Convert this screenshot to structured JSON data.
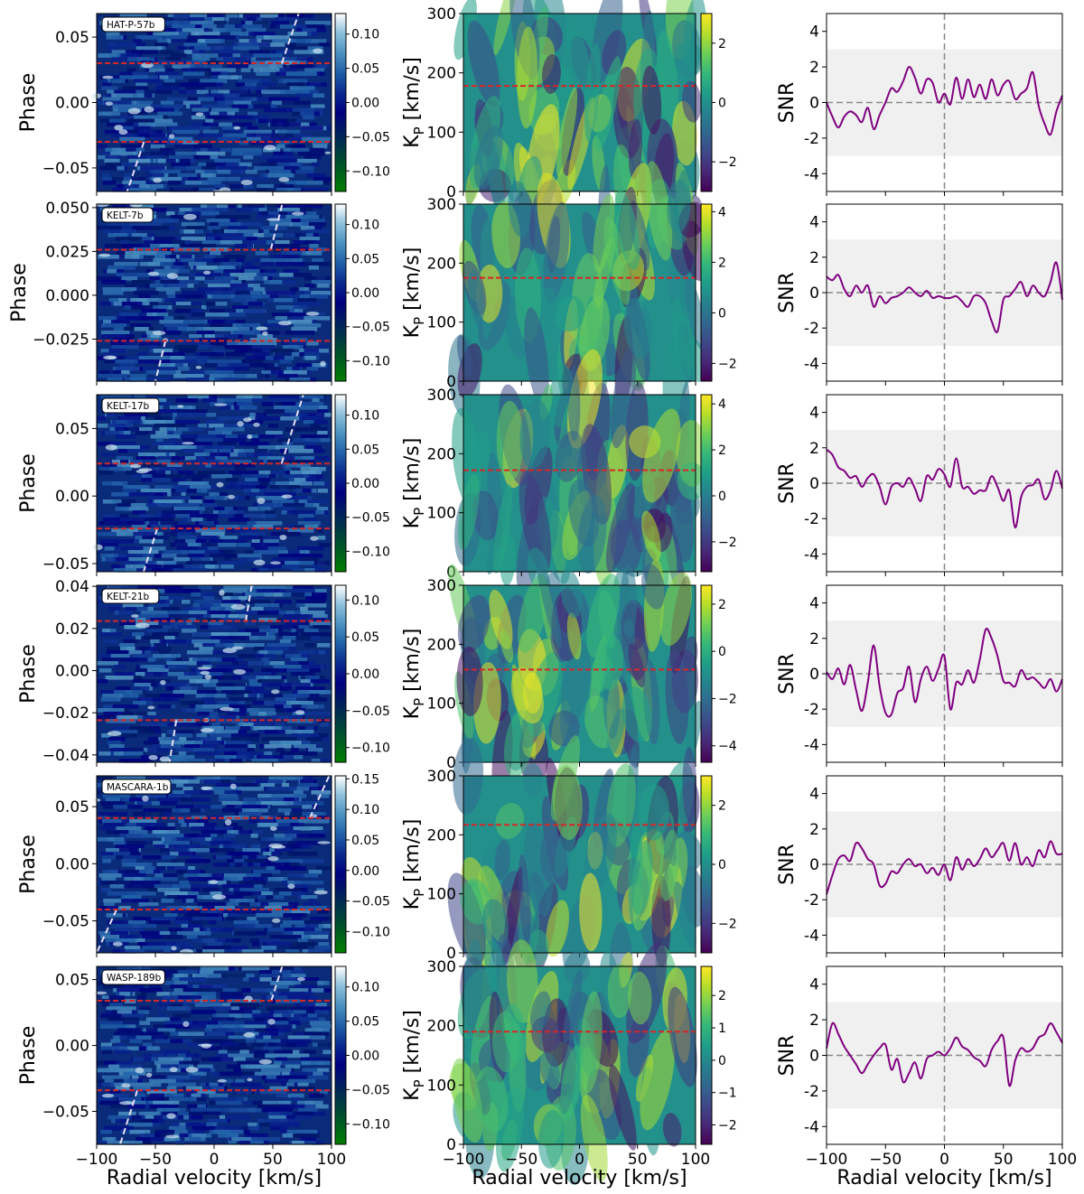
{
  "chart_data": {
    "type": "heatmap",
    "layout": "6 rows x 3 columns",
    "columns": [
      {
        "kind": "phase-velocity cross-correlation map",
        "xlabel": "Radial velocity [km/s]",
        "ylabel": "Phase",
        "xlim": [
          -100,
          100
        ],
        "x_ticks": [
          -100,
          -50,
          0,
          50,
          100
        ],
        "colormap": "ocean"
      },
      {
        "kind": "Kp-vsys map",
        "xlabel": "Radial velocity [km/s]",
        "ylabel": "K_P [km/s]",
        "xlim": [
          -100,
          100
        ],
        "ylim": [
          0,
          300
        ],
        "x_ticks": [
          -100,
          -50,
          0,
          50,
          100
        ],
        "y_ticks": [
          0,
          100,
          200,
          300
        ],
        "colormap": "viridis"
      },
      {
        "kind": "SNR line",
        "xlabel": "Radial velocity [km/s]",
        "ylabel": "SNR",
        "xlim": [
          -100,
          100
        ],
        "ylim": [
          -5,
          5
        ],
        "x_ticks": [
          -100,
          -50,
          0,
          50,
          100
        ],
        "y_ticks": [
          -4,
          -2,
          0,
          2,
          4
        ],
        "shaded_band": [
          -3,
          3
        ],
        "line_color": "#800080"
      }
    ],
    "rows": [
      {
        "planet": "HAT-P-57b",
        "phase_ticks": [
          "0.05",
          "0.00",
          "−0.05"
        ],
        "phase_tick_values": [
          0.05,
          0.0,
          -0.05
        ],
        "phase_range": [
          -0.068,
          0.068
        ],
        "transit_lines": [
          0.03,
          -0.03
        ],
        "cb1_ticks": [
          "0.10",
          "0.05",
          "0.00",
          "−0.05",
          "−0.10"
        ],
        "cb1_values": [
          0.1,
          0.05,
          0.0,
          -0.05,
          -0.1
        ],
        "cb1_range": [
          -0.13,
          0.13
        ],
        "kp_line": 178,
        "cb2_ticks": [
          "2",
          "0",
          "−2"
        ],
        "cb2_values": [
          2,
          0,
          -2
        ],
        "cb2_range": [
          -3.0,
          3.0
        ],
        "snr_x": [
          -100,
          -95,
          -90,
          -85,
          -80,
          -75,
          -70,
          -65,
          -60,
          -55,
          -50,
          -45,
          -40,
          -35,
          -30,
          -25,
          -20,
          -15,
          -10,
          -5,
          0,
          5,
          10,
          15,
          20,
          25,
          30,
          35,
          40,
          45,
          50,
          55,
          60,
          65,
          70,
          75,
          80,
          85,
          90,
          95,
          100
        ],
        "snr_y": [
          0.0,
          -0.8,
          -1.4,
          -0.8,
          -0.5,
          -0.7,
          -1.1,
          -0.3,
          -1.5,
          -0.7,
          0.0,
          0.8,
          0.6,
          1.2,
          2.0,
          1.4,
          0.5,
          1.3,
          1.1,
          0.0,
          0.5,
          -0.1,
          1.4,
          0.2,
          1.3,
          0.3,
          1.0,
          0.2,
          1.3,
          0.4,
          1.0,
          1.2,
          0.2,
          0.5,
          0.8,
          1.7,
          -0.2,
          -1.2,
          -1.8,
          -0.5,
          0.4
        ]
      },
      {
        "planet": "KELT-7b",
        "phase_ticks": [
          "0.050",
          "0.025",
          "0.000",
          "−0.025"
        ],
        "phase_tick_values": [
          0.05,
          0.025,
          0.0,
          -0.025
        ],
        "phase_range": [
          -0.049,
          0.052
        ],
        "transit_lines": [
          0.026,
          -0.026
        ],
        "cb1_ticks": [
          "0.10",
          "0.05",
          "0.00",
          "−0.05",
          "−0.10"
        ],
        "cb1_values": [
          0.1,
          0.05,
          0.0,
          -0.05,
          -0.1
        ],
        "cb1_range": [
          -0.13,
          0.13
        ],
        "kp_line": 175,
        "cb2_ticks": [
          "4",
          "2",
          "0",
          "−2"
        ],
        "cb2_values": [
          4,
          2,
          0,
          -2
        ],
        "cb2_range": [
          -2.7,
          4.3
        ],
        "snr_x": [
          -100,
          -95,
          -90,
          -85,
          -80,
          -75,
          -70,
          -65,
          -60,
          -55,
          -50,
          -45,
          -40,
          -35,
          -30,
          -25,
          -20,
          -15,
          -10,
          -5,
          0,
          5,
          10,
          15,
          20,
          25,
          30,
          35,
          40,
          45,
          50,
          55,
          60,
          65,
          70,
          75,
          80,
          85,
          90,
          95,
          100
        ],
        "snr_y": [
          0.9,
          0.7,
          1.0,
          0.2,
          -0.2,
          0.4,
          0.0,
          0.4,
          -0.8,
          -0.2,
          -0.6,
          -0.3,
          -0.2,
          0.0,
          0.3,
          0.0,
          -0.2,
          0.1,
          -0.3,
          -0.2,
          -0.3,
          -0.3,
          -0.2,
          -0.5,
          -0.8,
          -0.2,
          -0.2,
          -0.6,
          -1.6,
          -2.2,
          -0.4,
          -0.2,
          0.2,
          0.6,
          -0.2,
          0.4,
          0.0,
          -0.2,
          0.6,
          1.7,
          -0.4
        ]
      },
      {
        "planet": "KELT-17b",
        "phase_ticks": [
          "0.05",
          "0.00",
          "−0.05"
        ],
        "phase_tick_values": [
          0.05,
          0.0,
          -0.05
        ],
        "phase_range": [
          -0.056,
          0.075
        ],
        "transit_lines": [
          0.024,
          -0.024
        ],
        "cb1_ticks": [
          "0.10",
          "0.05",
          "0.00",
          "−0.05",
          "−0.10"
        ],
        "cb1_values": [
          0.1,
          0.05,
          0.0,
          -0.05,
          -0.1
        ],
        "cb1_range": [
          -0.13,
          0.13
        ],
        "kp_line": 172,
        "cb2_ticks": [
          "4",
          "2",
          "0",
          "−2"
        ],
        "cb2_values": [
          4,
          2,
          0,
          -2
        ],
        "cb2_range": [
          -3.3,
          4.4
        ],
        "snr_x": [
          -100,
          -95,
          -90,
          -85,
          -80,
          -75,
          -70,
          -65,
          -60,
          -55,
          -50,
          -45,
          -40,
          -35,
          -30,
          -25,
          -20,
          -15,
          -10,
          -5,
          0,
          5,
          10,
          15,
          20,
          25,
          30,
          35,
          40,
          45,
          50,
          55,
          60,
          65,
          70,
          75,
          80,
          85,
          90,
          95,
          100
        ],
        "snr_y": [
          1.9,
          1.6,
          0.9,
          0.7,
          0.3,
          0.4,
          -0.2,
          0.3,
          0.5,
          -0.2,
          -1.2,
          -0.2,
          0.0,
          -0.2,
          0.3,
          -0.3,
          -1.0,
          0.4,
          0.2,
          0.8,
          0.5,
          -0.2,
          1.4,
          -0.2,
          -0.2,
          -0.6,
          -0.4,
          -0.4,
          0.4,
          -0.2,
          -1.0,
          -0.4,
          -2.5,
          -0.8,
          -0.2,
          -0.1,
          0.2,
          -0.9,
          -0.4,
          0.7,
          -0.3
        ]
      },
      {
        "planet": "KELT-21b",
        "phase_ticks": [
          "0.04",
          "0.02",
          "0.00",
          "−0.02",
          "−0.04"
        ],
        "phase_tick_values": [
          0.04,
          0.02,
          0.0,
          -0.02,
          -0.04
        ],
        "phase_range": [
          -0.0435,
          0.0405
        ],
        "transit_lines": [
          0.0235,
          -0.0235
        ],
        "cb1_ticks": [
          "0.10",
          "0.05",
          "0.00",
          "−0.05",
          "−0.10"
        ],
        "cb1_values": [
          0.1,
          0.05,
          0.0,
          -0.05,
          -0.1
        ],
        "cb1_range": [
          -0.12,
          0.12
        ],
        "kp_line": 157,
        "cb2_ticks": [
          "2",
          "0",
          "−2",
          "−4"
        ],
        "cb2_values": [
          2,
          0,
          -2,
          -4
        ],
        "cb2_range": [
          -4.7,
          2.8
        ],
        "snr_x": [
          -100,
          -95,
          -90,
          -85,
          -80,
          -75,
          -70,
          -65,
          -60,
          -55,
          -50,
          -45,
          -40,
          -35,
          -30,
          -25,
          -20,
          -15,
          -10,
          -5,
          0,
          5,
          10,
          15,
          20,
          25,
          30,
          35,
          40,
          45,
          50,
          55,
          60,
          65,
          70,
          75,
          80,
          85,
          90,
          95,
          100
        ],
        "snr_y": [
          0.1,
          -0.3,
          0.3,
          -0.6,
          0.5,
          -0.9,
          -2.1,
          -0.5,
          1.6,
          -0.7,
          -2.2,
          -2.3,
          -1.1,
          -0.8,
          0.4,
          -1.6,
          -0.3,
          0.4,
          -0.4,
          0.3,
          1.0,
          -2.0,
          -0.5,
          -0.6,
          0.2,
          -0.5,
          0.8,
          2.5,
          2.0,
          1.0,
          -0.4,
          -0.5,
          -0.7,
          0.2,
          -0.3,
          -0.2,
          -0.5,
          -0.8,
          -0.3,
          -1.0,
          -0.3
        ]
      },
      {
        "planet": "MASCARA-1b",
        "phase_ticks": [
          "0.05",
          "0.00",
          "−0.05"
        ],
        "phase_tick_values": [
          0.05,
          0.0,
          -0.05
        ],
        "phase_range": [
          -0.078,
          0.077
        ],
        "transit_lines": [
          0.04,
          -0.04
        ],
        "cb1_ticks": [
          "0.15",
          "0.10",
          "0.05",
          "0.00",
          "−0.05",
          "−0.10"
        ],
        "cb1_values": [
          0.15,
          0.1,
          0.05,
          0.0,
          -0.05,
          -0.1
        ],
        "cb1_range": [
          -0.135,
          0.155
        ],
        "kp_line": 217,
        "cb2_ticks": [
          "2",
          "0",
          "−2"
        ],
        "cb2_values": [
          2,
          0,
          -2
        ],
        "cb2_range": [
          -3.0,
          3.0
        ],
        "snr_x": [
          -100,
          -95,
          -90,
          -85,
          -80,
          -75,
          -70,
          -65,
          -60,
          -55,
          -50,
          -45,
          -40,
          -35,
          -30,
          -25,
          -20,
          -15,
          -10,
          -5,
          0,
          5,
          10,
          15,
          20,
          25,
          30,
          35,
          40,
          45,
          50,
          55,
          60,
          65,
          70,
          75,
          80,
          85,
          90,
          95,
          100
        ],
        "snr_y": [
          -1.7,
          -0.6,
          0.3,
          0.5,
          0.2,
          1.2,
          0.9,
          0.3,
          0.0,
          -1.2,
          -1.1,
          -0.4,
          -0.5,
          0.0,
          0.3,
          -0.1,
          0.0,
          -0.5,
          -0.2,
          -0.6,
          0.0,
          -0.9,
          0.4,
          -0.3,
          0.3,
          -0.1,
          0.3,
          0.9,
          0.4,
          0.8,
          1.2,
          0.2,
          1.2,
          0.0,
          0.4,
          -0.1,
          0.8,
          0.4,
          1.3,
          0.6,
          0.6
        ]
      },
      {
        "planet": "WASP-189b",
        "phase_ticks": [
          "0.05",
          "0.00",
          "−0.05"
        ],
        "phase_tick_values": [
          0.05,
          0.0,
          -0.05
        ],
        "phase_range": [
          -0.075,
          0.06
        ],
        "transit_lines": [
          0.034,
          -0.034
        ],
        "cb1_ticks": [
          "0.10",
          "0.05",
          "0.00",
          "−0.05",
          "−0.10"
        ],
        "cb1_values": [
          0.1,
          0.05,
          0.0,
          -0.05,
          -0.1
        ],
        "cb1_range": [
          -0.13,
          0.13
        ],
        "kp_line": 190,
        "cb2_ticks": [
          "2",
          "1",
          "0",
          "−1",
          "−2"
        ],
        "cb2_values": [
          2,
          1,
          0,
          -1,
          -2
        ],
        "cb2_range": [
          -2.6,
          2.9
        ],
        "snr_x": [
          -100,
          -95,
          -90,
          -85,
          -80,
          -75,
          -70,
          -65,
          -60,
          -55,
          -50,
          -45,
          -40,
          -35,
          -30,
          -25,
          -20,
          -15,
          -10,
          -5,
          0,
          5,
          10,
          15,
          20,
          25,
          30,
          35,
          40,
          45,
          50,
          55,
          60,
          65,
          70,
          75,
          80,
          85,
          90,
          95,
          100
        ],
        "snr_y": [
          0.4,
          1.8,
          1.2,
          0.5,
          0.0,
          -0.5,
          -1.0,
          -0.5,
          0.0,
          0.4,
          0.6,
          -0.8,
          -0.2,
          -1.5,
          -1.0,
          -0.4,
          -1.3,
          -0.2,
          0.0,
          0.2,
          0.0,
          0.4,
          1.0,
          0.5,
          0.3,
          -0.1,
          -0.3,
          -0.6,
          0.3,
          0.8,
          1.0,
          -1.7,
          -0.3,
          0.4,
          0.2,
          0.4,
          1.0,
          1.2,
          1.8,
          1.3,
          0.7
        ]
      }
    ]
  }
}
